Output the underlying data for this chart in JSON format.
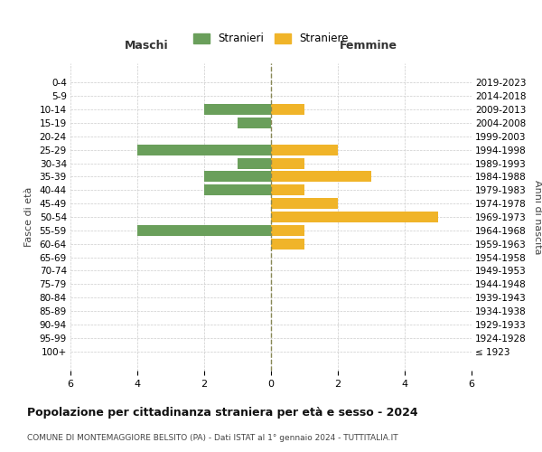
{
  "age_groups": [
    "100+",
    "95-99",
    "90-94",
    "85-89",
    "80-84",
    "75-79",
    "70-74",
    "65-69",
    "60-64",
    "55-59",
    "50-54",
    "45-49",
    "40-44",
    "35-39",
    "30-34",
    "25-29",
    "20-24",
    "15-19",
    "10-14",
    "5-9",
    "0-4"
  ],
  "birth_years": [
    "≤ 1923",
    "1924-1928",
    "1929-1933",
    "1934-1938",
    "1939-1943",
    "1944-1948",
    "1949-1953",
    "1954-1958",
    "1959-1963",
    "1964-1968",
    "1969-1973",
    "1974-1978",
    "1979-1983",
    "1984-1988",
    "1989-1993",
    "1994-1998",
    "1999-2003",
    "2004-2008",
    "2009-2013",
    "2014-2018",
    "2019-2023"
  ],
  "maschi": [
    0,
    0,
    0,
    0,
    0,
    0,
    0,
    0,
    0,
    4,
    0,
    0,
    2,
    2,
    1,
    4,
    0,
    1,
    2,
    0,
    0
  ],
  "femmine": [
    0,
    0,
    0,
    0,
    0,
    0,
    0,
    0,
    1,
    1,
    5,
    2,
    1,
    3,
    1,
    2,
    0,
    0,
    1,
    0,
    0
  ],
  "color_maschi": "#6a9f5b",
  "color_femmine": "#f0b429",
  "title": "Popolazione per cittadinanza straniera per età e sesso - 2024",
  "subtitle": "COMUNE DI MONTEMAGGIORE BELSITO (PA) - Dati ISTAT al 1° gennaio 2024 - TUTTITALIA.IT",
  "label_maschi": "Stranieri",
  "label_femmine": "Straniere",
  "xlabel_left": "Maschi",
  "xlabel_right": "Femmine",
  "ylabel_left": "Fasce di età",
  "ylabel_right": "Anni di nascita",
  "xlim": 6,
  "background_color": "#ffffff",
  "grid_color": "#cccccc",
  "bar_height": 0.8
}
